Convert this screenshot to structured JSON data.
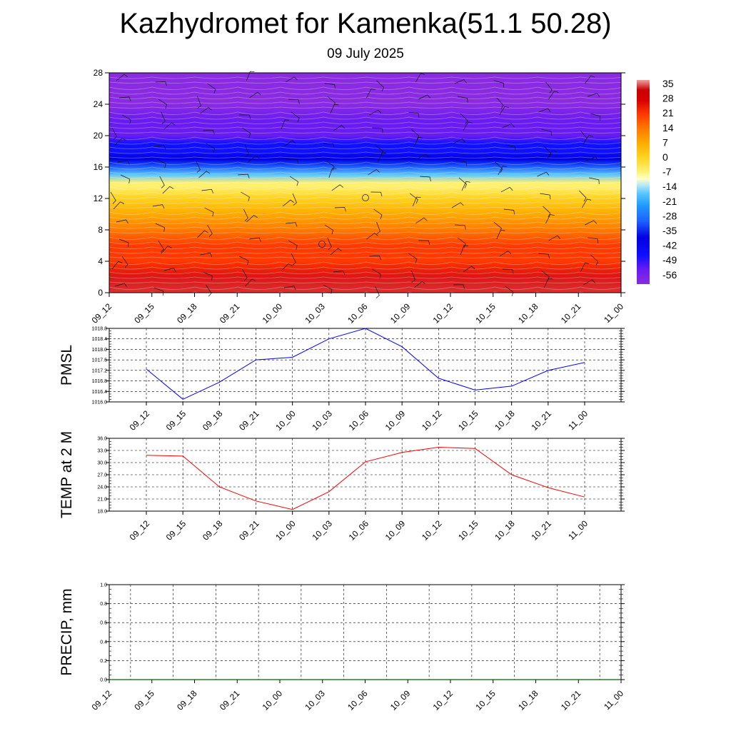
{
  "title": "Kazhydromet for Kamenka(51.1 50.28)",
  "subtitle": "09 July 2025",
  "time_labels": [
    "09_12",
    "09_15",
    "09_18",
    "09_21",
    "10_00",
    "10_03",
    "10_06",
    "10_09",
    "10_12",
    "10_15",
    "10_18",
    "10_21",
    "11_00"
  ],
  "chart_data": [
    {
      "type": "heatmap",
      "name": "vertical temperature cross-section with wind barbs",
      "x": [
        "09_12",
        "09_15",
        "09_18",
        "09_21",
        "10_00",
        "10_03",
        "10_06",
        "10_09",
        "10_12",
        "10_15",
        "10_18",
        "10_21",
        "11_00"
      ],
      "y_ticks": [
        0,
        4,
        8,
        12,
        16,
        20,
        24,
        28
      ],
      "ylim": [
        0,
        28
      ],
      "colorbar": {
        "labels": [
          "35",
          "28",
          "21",
          "14",
          "7",
          "0",
          "-7",
          "-14",
          "-21",
          "-28",
          "-35",
          "-42",
          "-49",
          "-56"
        ],
        "range": [
          -63,
          38
        ],
        "colors": [
          "#8a2be2",
          "#0000ff",
          "#1e90ff",
          "#00bfff",
          "#87ceeb",
          "#ffffcc",
          "#ffd700",
          "#ff8c00",
          "#ff4500",
          "#dd0000",
          "#c80000",
          "#e06060"
        ]
      },
      "temperature_profile_by_height": [
        [
          0,
          34
        ],
        [
          2,
          30
        ],
        [
          4,
          27
        ],
        [
          6,
          22
        ],
        [
          8,
          17
        ],
        [
          10,
          10
        ],
        [
          12,
          5
        ],
        [
          13.5,
          -1
        ],
        [
          14,
          -6
        ],
        [
          15,
          -16
        ],
        [
          16,
          -24
        ],
        [
          17,
          -32
        ],
        [
          18,
          -40
        ],
        [
          19,
          -47
        ],
        [
          20,
          -52
        ],
        [
          22,
          -55
        ],
        [
          24,
          -58
        ],
        [
          26,
          -60
        ],
        [
          28,
          -59
        ]
      ]
    },
    {
      "type": "line",
      "ylabel": "PMSL",
      "x": [
        "09_12",
        "09_15",
        "09_18",
        "09_21",
        "10_00",
        "10_03",
        "10_06",
        "10_09",
        "10_12",
        "10_15",
        "10_18",
        "10_21",
        "11_00"
      ],
      "y_ticks": [
        "1016.0",
        "1016.4",
        "1016.8",
        "1017.2",
        "1017.6",
        "1018.0",
        "1018.4",
        "1018.8"
      ],
      "ylim": [
        1016.0,
        1018.8
      ],
      "series": [
        {
          "color": "#0000ff",
          "values": [
            1017.25,
            1016.1,
            1016.75,
            1017.6,
            1017.7,
            1018.4,
            1018.8,
            1018.1,
            1016.9,
            1016.45,
            1016.6,
            1017.2,
            1017.5
          ]
        }
      ]
    },
    {
      "type": "line",
      "ylabel": "TEMP at 2 M",
      "x": [
        "09_12",
        "09_15",
        "09_18",
        "09_21",
        "10_00",
        "10_03",
        "10_06",
        "10_09",
        "10_12",
        "10_15",
        "10_18",
        "10_21",
        "11_00"
      ],
      "y_ticks": [
        "18.0",
        "21.0",
        "24.0",
        "27.0",
        "30.0",
        "33.0",
        "36.0"
      ],
      "ylim": [
        18.0,
        36.0
      ],
      "series": [
        {
          "color": "#ff0000",
          "values": [
            31.8,
            31.6,
            24.0,
            20.5,
            18.4,
            22.8,
            30.2,
            32.5,
            33.8,
            33.5,
            27.0,
            23.8,
            21.5
          ]
        }
      ]
    },
    {
      "type": "line",
      "ylabel": "PRECIP, mm",
      "x": [
        "09_12",
        "09_15",
        "09_18",
        "09_21",
        "10_00",
        "10_03",
        "10_06",
        "10_09",
        "10_12",
        "10_15",
        "10_18",
        "10_21",
        "11_00"
      ],
      "y_ticks": [
        "0.0",
        "0.2",
        "0.4",
        "0.6",
        "0.8",
        "1.0"
      ],
      "ylim": [
        0.0,
        1.0
      ],
      "series": [
        {
          "color": "#006400",
          "values": [
            0,
            0,
            0,
            0,
            0,
            0,
            0,
            0,
            0,
            0,
            0,
            0,
            0
          ]
        }
      ]
    }
  ]
}
